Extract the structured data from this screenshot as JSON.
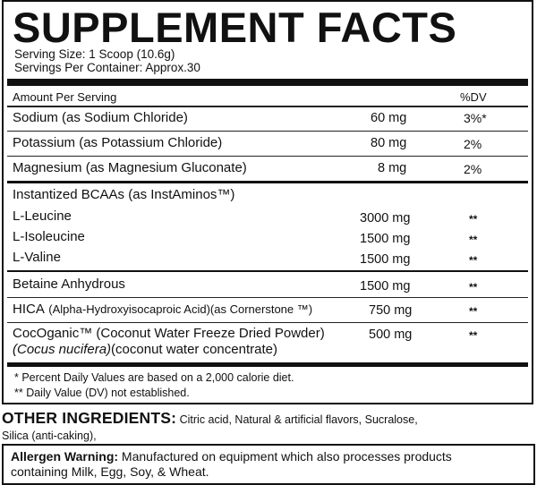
{
  "header": {
    "title": "SUPPLEMENT FACTS",
    "serving_size": "Serving Size: 1 Scoop (10.6g)",
    "servings_per_container": "Servings Per Container: Approx.30"
  },
  "table_header": {
    "amount_per_serving": "Amount Per Serving",
    "dv": "%DV"
  },
  "rows": {
    "sodium": {
      "name": "Sodium (as Sodium Chloride)",
      "amount": "60 mg",
      "dv": "3%*"
    },
    "potassium": {
      "name": "Potassium (as Potassium Chloride)",
      "amount": "80 mg",
      "dv": "2%"
    },
    "magnesium": {
      "name": "Magnesium (as Magnesium Gluconate)",
      "amount": "8 mg",
      "dv": "2%"
    },
    "bcaa_header": "Instantized BCAAs (as InstAminos™)",
    "leucine": {
      "name": "L-Leucine",
      "amount": "3000 mg",
      "dv": "**"
    },
    "isoleucine": {
      "name": "L-Isoleucine",
      "amount": "1500 mg",
      "dv": "**"
    },
    "valine": {
      "name": "L-Valine",
      "amount": "1500 mg",
      "dv": "**"
    },
    "betaine": {
      "name": "Betaine Anhydrous",
      "amount": "1500 mg",
      "dv": "**"
    },
    "hica": {
      "name_prefix": "HICA",
      "name_detail": "(Alpha-Hydroxyisocaproic Acid)(as Cornerstone ™)",
      "amount": "750 mg",
      "dv": "**"
    },
    "cocoganic": {
      "line1": "CocOganic™ (Coconut Water Freeze Dried Powder)",
      "line2_italic": "(Cocus nucifera)",
      "line2_rest": "(coconut water concentrate)",
      "amount": "500 mg",
      "dv": "**"
    }
  },
  "footnotes": {
    "note1": "* Percent Daily Values are based on a 2,000 calorie diet.",
    "note2": "** Daily Value (DV) not established."
  },
  "other_ingredients": {
    "label": "OTHER INGREDIENTS:",
    "text_line1": " Citric acid, Natural & artificial flavors, Sucralose,",
    "text_line2": "Silica (anti-caking),"
  },
  "allergen": {
    "label": "Allergen Warning:",
    "text_line1": "  Manufactured on equipment which also processes products",
    "text_line2": "containing Milk, Egg, Soy, & Wheat."
  }
}
